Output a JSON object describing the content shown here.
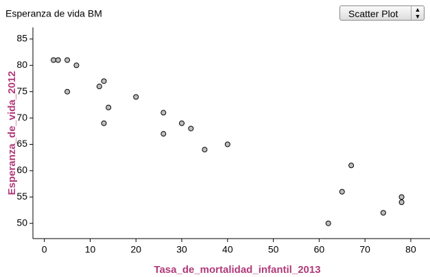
{
  "control": {
    "label": "Scatter Plot"
  },
  "chart_data": {
    "type": "scatter",
    "title": "Esperanza de vida BM",
    "x_label": "Tasa_de_mortalidad_infantil_2013",
    "y_label": "Esperanza_de_vida_2012",
    "x": [
      2,
      3,
      5,
      7,
      5,
      12,
      13,
      14,
      13,
      20,
      26,
      26,
      30,
      32,
      35,
      40,
      62,
      65,
      67,
      74,
      78,
      78
    ],
    "values": [
      81,
      81,
      81,
      80,
      75,
      76,
      77,
      72,
      69,
      74,
      71,
      67,
      69,
      68,
      64,
      65,
      50,
      56,
      61,
      52,
      55,
      54
    ],
    "color": "#bdbdbd",
    "label_color": "#b03a7a",
    "xlim": [
      -2.5,
      84.2
    ],
    "ylim": [
      47.1,
      87.2
    ],
    "xticks": [
      0,
      10,
      20,
      30,
      40,
      50,
      60,
      70,
      80
    ],
    "yticks": [
      50,
      55,
      60,
      65,
      70,
      75,
      80,
      85
    ],
    "grid": false
  }
}
